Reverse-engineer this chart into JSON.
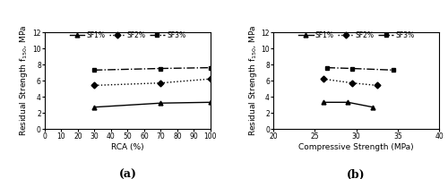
{
  "panel_a": {
    "xlabel": "RCA (%)",
    "ylabel": "Residual Strength f$_{150}$, MPa",
    "xlim": [
      0,
      100
    ],
    "ylim": [
      0,
      12
    ],
    "xticks": [
      0,
      10,
      20,
      30,
      40,
      50,
      60,
      70,
      80,
      90,
      100
    ],
    "yticks": [
      0,
      2,
      4,
      6,
      8,
      10,
      12
    ],
    "label": "(a)",
    "series": {
      "SF1%": {
        "x": [
          30,
          70,
          100
        ],
        "y": [
          2.7,
          3.2,
          3.3
        ],
        "linestyle": "-",
        "marker": "^",
        "color": "black"
      },
      "SF2%": {
        "x": [
          30,
          70,
          100
        ],
        "y": [
          5.4,
          5.7,
          6.2
        ],
        "linestyle": ":",
        "marker": "D",
        "color": "black"
      },
      "SF3%": {
        "x": [
          30,
          70,
          100
        ],
        "y": [
          7.3,
          7.5,
          7.6
        ],
        "linestyle": "-.",
        "marker": "s",
        "color": "black"
      }
    }
  },
  "panel_b": {
    "xlabel": "Compressive Strength (MPa)",
    "ylabel": "Residual Strength f$_{150}$, MPa",
    "xlim": [
      20,
      40
    ],
    "ylim": [
      0,
      12
    ],
    "xticks": [
      20,
      25,
      30,
      35,
      40
    ],
    "yticks": [
      0,
      2,
      4,
      6,
      8,
      10,
      12
    ],
    "label": "(b)",
    "series": {
      "SF1%": {
        "x": [
          26.0,
          29.0,
          32.0
        ],
        "y": [
          3.3,
          3.3,
          2.7
        ],
        "linestyle": "-",
        "marker": "^",
        "color": "black"
      },
      "SF2%": {
        "x": [
          26.0,
          29.5,
          32.5
        ],
        "y": [
          6.2,
          5.7,
          5.4
        ],
        "linestyle": ":",
        "marker": "D",
        "color": "black"
      },
      "SF3%": {
        "x": [
          26.5,
          29.5,
          34.5
        ],
        "y": [
          7.6,
          7.5,
          7.3
        ],
        "linestyle": "-.",
        "marker": "s",
        "color": "black"
      }
    }
  },
  "legend_labels": [
    "SF1%",
    "SF2%",
    "SF3%"
  ],
  "legend_linestyles": [
    "-",
    ":",
    "-."
  ],
  "legend_markers": [
    "^",
    "D",
    "s"
  ],
  "background_color": "#ffffff",
  "label_fontsize": 6.5,
  "tick_fontsize": 5.5,
  "panel_label_fontsize": 9,
  "legend_fontsize": 5.5,
  "linewidth": 1.0,
  "markersize": 3.5
}
